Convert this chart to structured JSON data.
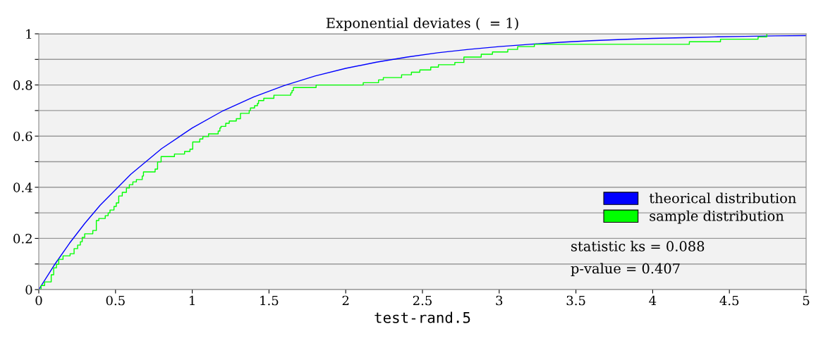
{
  "chart_data": {
    "type": "line",
    "title": "Exponential deviates (  = 1)",
    "xlabel": "test-rand.5",
    "xlim": [
      0,
      5
    ],
    "xticks": [
      0,
      0.5,
      1,
      1.5,
      2,
      2.5,
      3,
      3.5,
      4,
      4.5,
      5
    ],
    "ylim": [
      0,
      1
    ],
    "yticks": [
      0,
      {
        "value": 0.1,
        "label": null
      },
      0.2,
      {
        "value": 0.3,
        "label": null
      },
      0.4,
      {
        "value": 0.5,
        "label": null
      },
      0.6,
      {
        "value": 0.7,
        "label": null
      },
      0.8,
      {
        "value": 0.9,
        "label": null
      },
      1
    ],
    "grid": "y",
    "legend": "bottom right",
    "series": [
      {
        "name": "theorical distribution",
        "color": "#0000ff",
        "x": [
          0,
          0.1,
          0.2,
          0.3,
          0.4,
          0.6,
          0.8,
          1.0,
          1.2,
          1.4,
          1.6,
          1.8,
          2.0,
          2.2,
          2.4,
          2.6,
          2.8,
          3.0,
          3.2,
          3.4,
          3.6,
          3.8,
          4.0,
          4.2,
          4.4,
          4.6,
          4.8,
          5.0
        ],
        "values": [
          0,
          0.095,
          0.181,
          0.259,
          0.33,
          0.451,
          0.551,
          0.632,
          0.699,
          0.753,
          0.798,
          0.835,
          0.865,
          0.889,
          0.909,
          0.926,
          0.939,
          0.95,
          0.959,
          0.967,
          0.973,
          0.978,
          0.982,
          0.985,
          0.988,
          0.99,
          0.992,
          0.993
        ]
      },
      {
        "name": "sample distribution",
        "color": "#00ff00",
        "type": "step",
        "x": [
          0,
          0.015,
          0.038,
          0.081,
          0.097,
          0.115,
          0.13,
          0.158,
          0.204,
          0.23,
          0.253,
          0.271,
          0.283,
          0.299,
          0.352,
          0.375,
          0.391,
          0.433,
          0.452,
          0.464,
          0.49,
          0.505,
          0.521,
          0.544,
          0.571,
          0.59,
          0.613,
          0.636,
          0.674,
          0.682,
          0.758,
          0.774,
          0.797,
          0.884,
          0.95,
          0.985,
          1.003,
          1.049,
          1.069,
          1.106,
          1.169,
          1.18,
          1.187,
          1.218,
          1.241,
          1.287,
          1.314,
          1.371,
          1.379,
          1.406,
          1.425,
          1.432,
          1.466,
          1.532,
          1.642,
          1.65,
          1.659,
          1.807,
          2.114,
          2.214,
          2.245,
          2.364,
          2.428,
          2.483,
          2.554,
          2.604,
          2.711,
          2.77,
          2.883,
          2.956,
          3.056,
          3.12,
          3.229,
          4.239,
          4.442,
          4.687,
          4.744
        ],
        "values": [
          0,
          0.016,
          0.03,
          0.058,
          0.085,
          0.099,
          0.118,
          0.132,
          0.14,
          0.16,
          0.174,
          0.187,
          0.204,
          0.218,
          0.231,
          0.27,
          0.278,
          0.289,
          0.3,
          0.311,
          0.325,
          0.339,
          0.366,
          0.38,
          0.397,
          0.41,
          0.421,
          0.43,
          0.444,
          0.46,
          0.471,
          0.499,
          0.52,
          0.53,
          0.54,
          0.549,
          0.577,
          0.589,
          0.598,
          0.609,
          0.62,
          0.632,
          0.638,
          0.65,
          0.659,
          0.668,
          0.689,
          0.7,
          0.71,
          0.719,
          0.728,
          0.739,
          0.748,
          0.76,
          0.769,
          0.778,
          0.79,
          0.8,
          0.809,
          0.82,
          0.829,
          0.84,
          0.85,
          0.859,
          0.87,
          0.879,
          0.888,
          0.909,
          0.92,
          0.929,
          0.939,
          0.95,
          0.959,
          0.969,
          0.979,
          0.988,
          1.0
        ]
      }
    ],
    "annotations": [
      "statistic ks = 0.088",
      "p-value = 0.407"
    ]
  }
}
